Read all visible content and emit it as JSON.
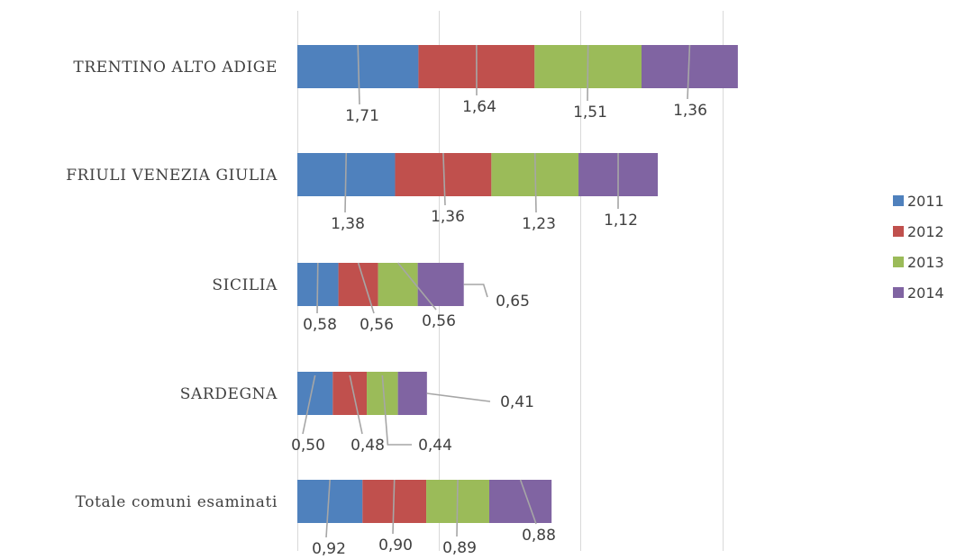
{
  "chart_data": {
    "type": "bar",
    "orientation": "horizontal",
    "stacked": true,
    "categories": [
      "TRENTINO ALTO ADIGE",
      "FRIULI VENEZIA GIULIA",
      "SICILIA",
      "SARDEGNA",
      "Totale comuni esaminati"
    ],
    "series": [
      {
        "name": "2011",
        "color": "#4f81bd",
        "values": [
          1.71,
          1.38,
          0.58,
          0.5,
          0.92
        ],
        "labels": [
          "1,71",
          "1,38",
          "0,58",
          "0,50",
          "0,92"
        ]
      },
      {
        "name": "2012",
        "color": "#c0504d",
        "values": [
          1.64,
          1.36,
          0.56,
          0.48,
          0.9
        ],
        "labels": [
          "1,64",
          "1,36",
          "0,56",
          "0,48",
          "0,90"
        ]
      },
      {
        "name": "2013",
        "color": "#9bbb59",
        "values": [
          1.51,
          1.23,
          0.56,
          0.44,
          0.89
        ],
        "labels": [
          "1,51",
          "1,23",
          "0,56",
          "0,44",
          "0,89"
        ]
      },
      {
        "name": "2014",
        "color": "#8064a2",
        "values": [
          1.36,
          1.12,
          0.65,
          0.41,
          0.88
        ],
        "labels": [
          "1,36",
          "1,12",
          "0,65",
          "0,41",
          "0,88"
        ]
      }
    ],
    "xlim": [
      0,
      8
    ],
    "grid": true,
    "legend": "right",
    "title": "",
    "xlabel": "",
    "ylabel": ""
  }
}
